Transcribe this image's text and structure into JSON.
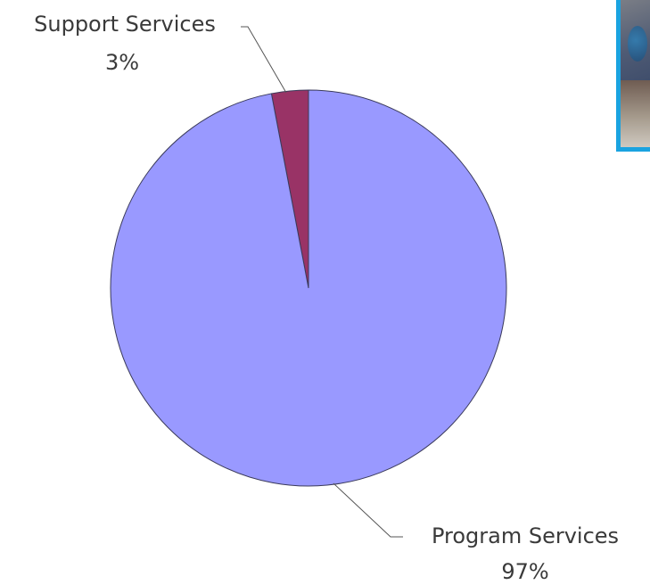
{
  "colors": {
    "program": "#9999ff",
    "support": "#993366",
    "slice_stroke": "#3a3a5a",
    "leader": "#555555",
    "photo_border": "#1aa3e0"
  },
  "chart_data": {
    "type": "pie",
    "slices": [
      {
        "label": "Support Services",
        "percent_text": "3%",
        "value": 3
      },
      {
        "label": "Program Services",
        "percent_text": "97%",
        "value": 97
      }
    ]
  },
  "decor": {
    "photo_icon": "photo-thumbnail"
  }
}
